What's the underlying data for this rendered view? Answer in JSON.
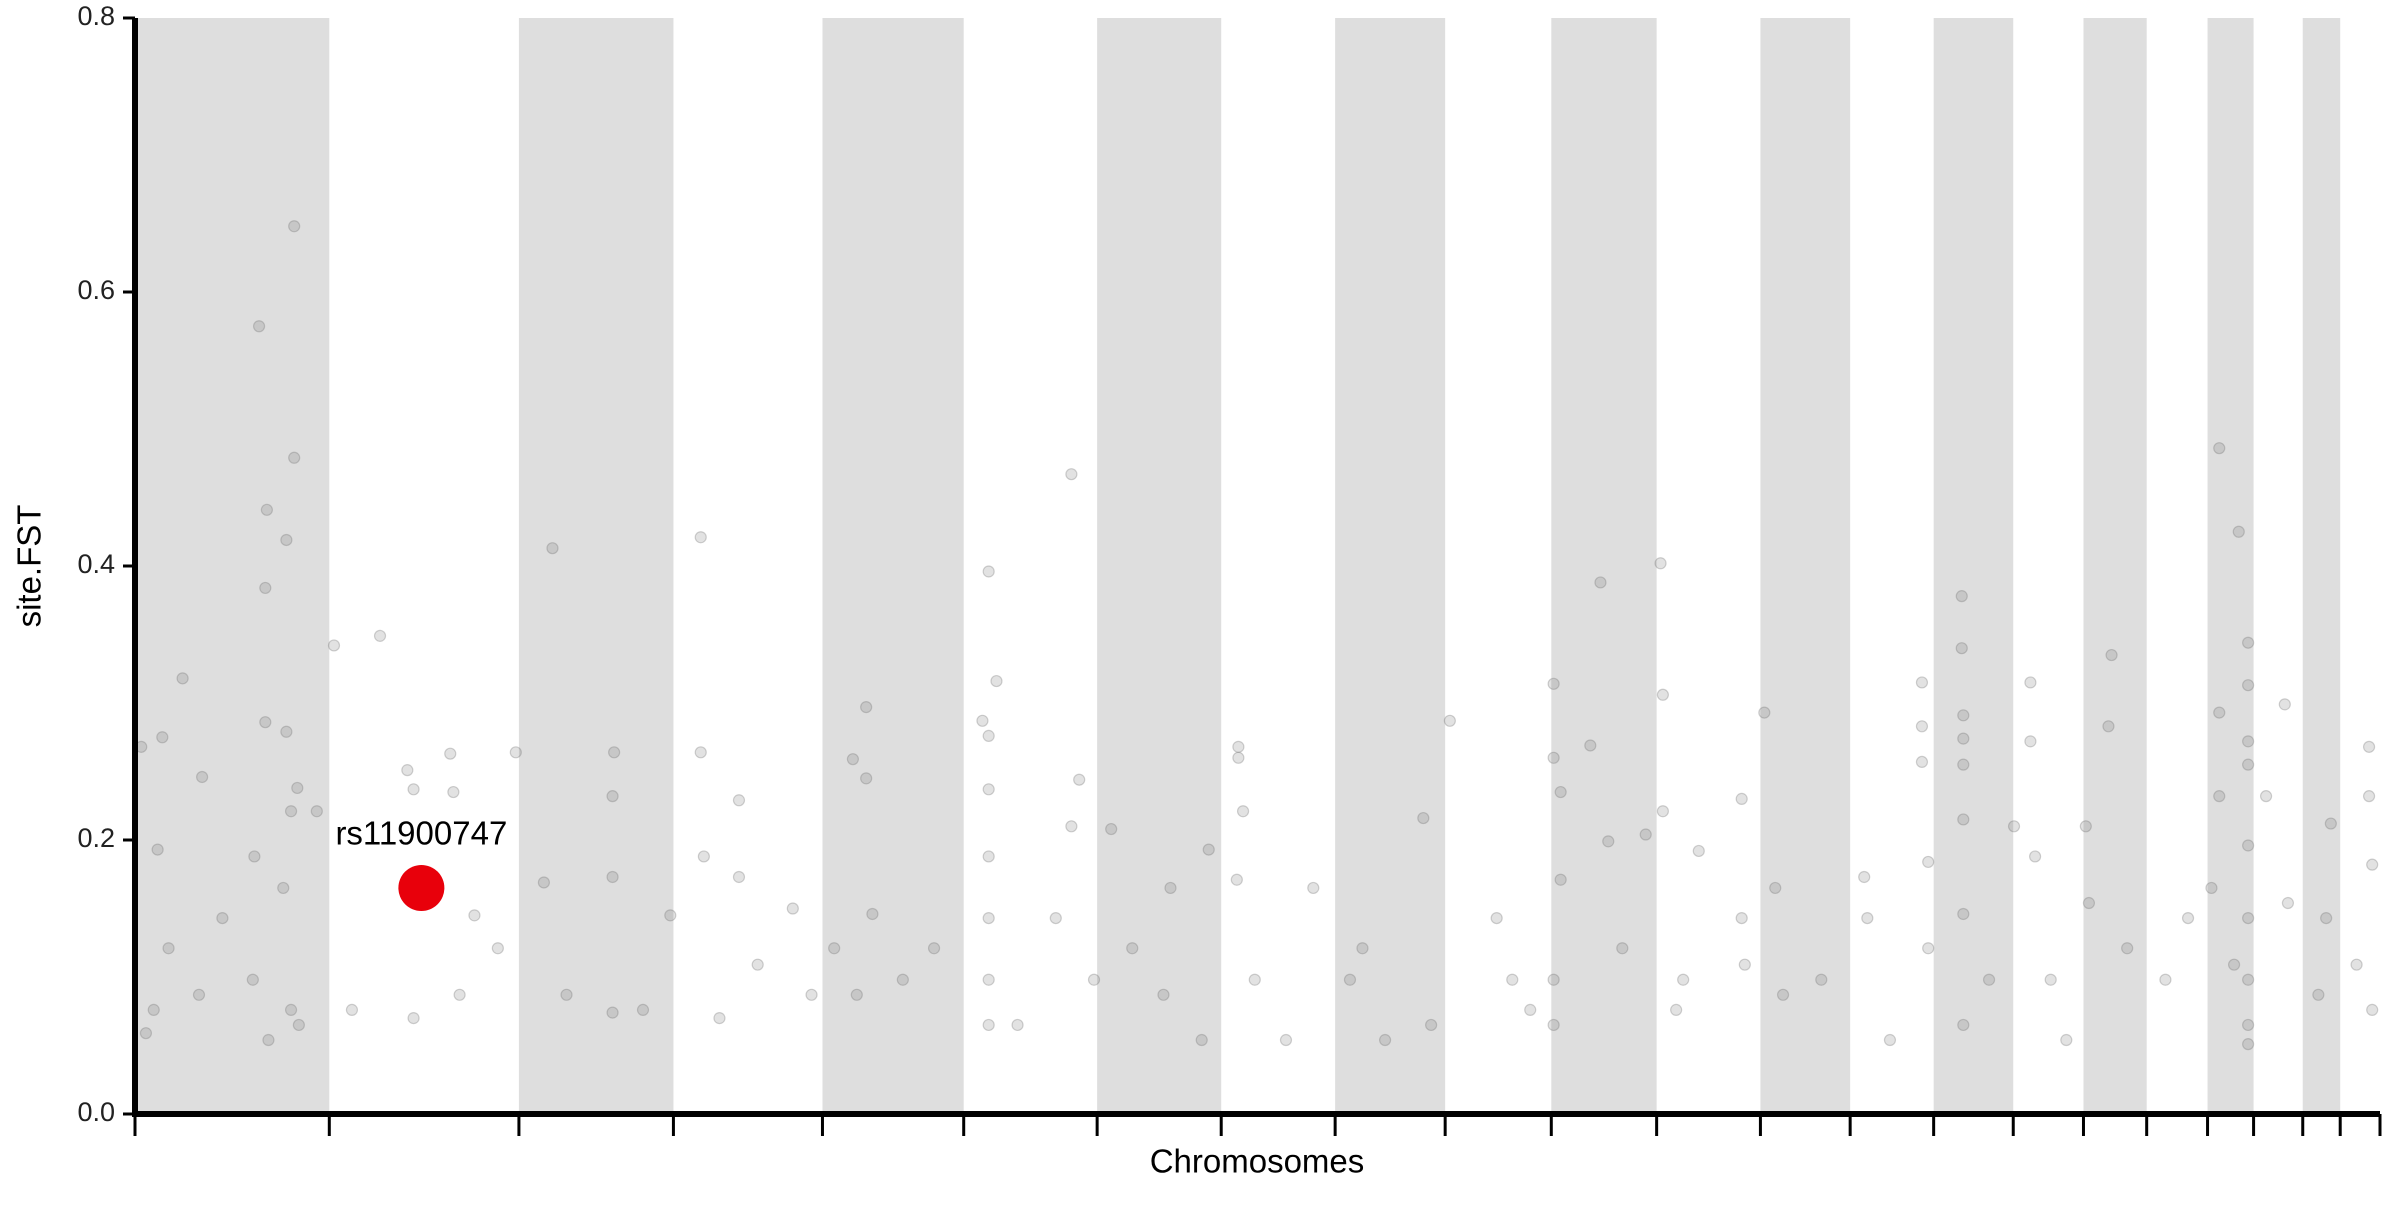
{
  "chart_data": {
    "type": "scatter",
    "xlabel": "Chromosomes",
    "ylabel": "site.FST",
    "xlim": [
      0,
      2877
    ],
    "xticks": [
      0,
      249,
      492,
      690,
      881,
      1062,
      1233,
      1392,
      1538,
      1679,
      1815,
      1950,
      2083,
      2198,
      2305,
      2407,
      2497,
      2578,
      2656,
      2715,
      2778,
      2826,
      2877
    ],
    "ylim": [
      0,
      0.8
    ],
    "yticks": [
      {
        "value": 0,
        "label": "0.0"
      },
      0.2,
      0.4,
      0.6,
      0.8
    ],
    "band_color": "#dedede",
    "series": [
      {
        "color": "#6e6e6e",
        "x": [
          61,
          35,
          29,
          86,
          159,
          204,
          204,
          169,
          194,
          167,
          167,
          194,
          208,
          200,
          233,
          153,
          190,
          14,
          82,
          151,
          200,
          210,
          43,
          112,
          8,
          171,
          24,
          255,
          314,
          349,
          404,
          408,
          357,
          357,
          435,
          278,
          416,
          465,
          488,
          535,
          614,
          524,
          612,
          612,
          553,
          612,
          651,
          686,
          725,
          725,
          774,
          774,
          729,
          798,
          749,
          843,
          867,
          937,
          920,
          937,
          945,
          896,
          925,
          984,
          1024,
          1094,
          1104,
          1086,
          1094,
          1094,
          1094,
          1094,
          1094,
          1094,
          1131,
          1200,
          1210,
          1200,
          1180,
          1229,
          1251,
          1278,
          1327,
          1376,
          1318,
          1367,
          1414,
          1414,
          1420,
          1412,
          1435,
          1510,
          1475,
          1557,
          1573,
          1602,
          1651,
          1661,
          1685,
          1745,
          1765,
          1788,
          1818,
          1818,
          1827,
          1865,
          1878,
          1827,
          1818,
          1818,
          1906,
          1888,
          1955,
          1958,
          1958,
          1936,
          1984,
          2004,
          1975,
          2063,
          2088,
          2059,
          2059,
          2102,
          2112,
          2161,
          2216,
          2220,
          2249,
          2298,
          2290,
          2290,
          2290,
          2298,
          2341,
          2341,
          2343,
          2343,
          2343,
          2343,
          2343,
          2376,
          2343,
          2429,
          2429,
          2408,
          2435,
          2455,
          2475,
          2500,
          2533,
          2529,
          2504,
          2553,
          2602,
          2631,
          2671,
          2696,
          2671,
          2671,
          2661,
          2690,
          2708,
          2708,
          2708,
          2708,
          2708,
          2708,
          2708,
          2708,
          2708,
          2755,
          2731,
          2759,
          2814,
          2808,
          2798,
          2863,
          2863,
          2867,
          2847,
          2867
        ],
        "values": [
          0.318,
          0.275,
          0.193,
          0.246,
          0.575,
          0.648,
          0.479,
          0.441,
          0.419,
          0.384,
          0.286,
          0.279,
          0.238,
          0.221,
          0.221,
          0.188,
          0.165,
          0.059,
          0.087,
          0.098,
          0.076,
          0.065,
          0.121,
          0.143,
          0.268,
          0.054,
          0.076,
          0.342,
          0.349,
          0.251,
          0.263,
          0.235,
          0.237,
          0.07,
          0.145,
          0.076,
          0.087,
          0.121,
          0.264,
          0.413,
          0.264,
          0.169,
          0.232,
          0.173,
          0.087,
          0.074,
          0.076,
          0.145,
          0.421,
          0.264,
          0.229,
          0.173,
          0.188,
          0.109,
          0.07,
          0.15,
          0.087,
          0.297,
          0.259,
          0.245,
          0.146,
          0.121,
          0.087,
          0.098,
          0.121,
          0.396,
          0.316,
          0.287,
          0.276,
          0.237,
          0.188,
          0.143,
          0.098,
          0.065,
          0.065,
          0.467,
          0.244,
          0.21,
          0.143,
          0.098,
          0.208,
          0.121,
          0.165,
          0.193,
          0.087,
          0.054,
          0.268,
          0.26,
          0.221,
          0.171,
          0.098,
          0.165,
          0.054,
          0.098,
          0.121,
          0.054,
          0.216,
          0.065,
          0.287,
          0.143,
          0.098,
          0.076,
          0.314,
          0.26,
          0.235,
          0.269,
          0.388,
          0.171,
          0.098,
          0.065,
          0.121,
          0.199,
          0.402,
          0.306,
          0.221,
          0.204,
          0.098,
          0.192,
          0.076,
          0.109,
          0.293,
          0.23,
          0.143,
          0.165,
          0.087,
          0.098,
          0.173,
          0.143,
          0.054,
          0.121,
          0.315,
          0.283,
          0.257,
          0.184,
          0.378,
          0.34,
          0.291,
          0.274,
          0.255,
          0.215,
          0.146,
          0.098,
          0.065,
          0.315,
          0.272,
          0.21,
          0.188,
          0.098,
          0.054,
          0.21,
          0.335,
          0.283,
          0.154,
          0.121,
          0.098,
          0.143,
          0.486,
          0.425,
          0.293,
          0.232,
          0.165,
          0.109,
          0.344,
          0.313,
          0.272,
          0.255,
          0.196,
          0.143,
          0.098,
          0.065,
          0.051,
          0.299,
          0.232,
          0.154,
          0.212,
          0.143,
          0.087,
          0.268,
          0.232,
          0.182,
          0.109,
          0.076
        ]
      }
    ],
    "highlight": {
      "label": "rs11900747",
      "x": 367,
      "y": 0.165,
      "color": "#e8000b"
    }
  }
}
